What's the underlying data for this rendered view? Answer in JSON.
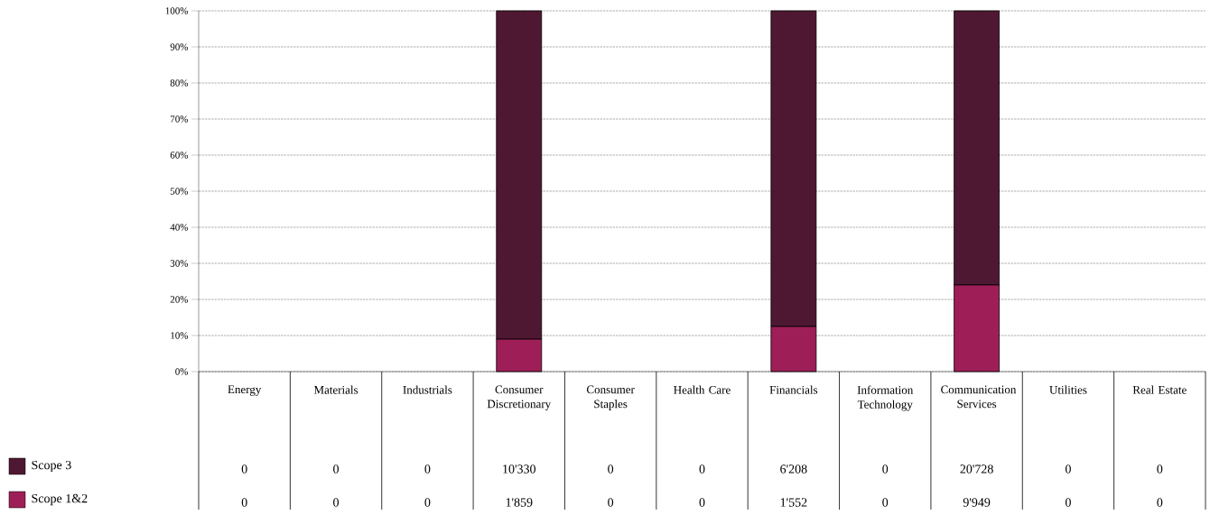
{
  "chart_data": {
    "type": "bar",
    "stacked": true,
    "grid": "y",
    "legend": "bottom left",
    "categories": [
      "Energy",
      "Materials",
      "Industrials",
      "Consumer Discretionary",
      "Consumer Staples",
      "Health Care",
      "Financials",
      "Information Technology",
      "Communication Services",
      "Utilities",
      "Real Estate"
    ],
    "series": [
      {
        "name": "Scope 1&2",
        "color": "#9e1f57",
        "values": [
          0,
          0,
          0,
          9,
          0,
          0,
          12.5,
          0,
          24,
          0,
          0
        ]
      },
      {
        "name": "Scope 3",
        "color": "#4f1832",
        "values": [
          0,
          0,
          0,
          91,
          0,
          0,
          87.5,
          0,
          76,
          0,
          0
        ]
      }
    ],
    "annotations": [
      "0",
      "0",
      "0",
      "10'330",
      "0",
      "0",
      "6'208",
      "0",
      "20'728",
      "0",
      "0",
      "0",
      "0",
      "0",
      "1'859",
      "0",
      "0",
      "1'552",
      "0",
      "9'949",
      "0",
      "0"
    ],
    "ylim": [
      0,
      100
    ],
    "yticks": [
      {
        "value": 0,
        "label": "0%"
      },
      {
        "value": 10,
        "label": "10%"
      },
      {
        "value": 20,
        "label": "20%"
      },
      {
        "value": 30,
        "label": "30%"
      },
      {
        "value": 40,
        "label": "40%"
      },
      {
        "value": 50,
        "label": "50%"
      },
      {
        "value": 60,
        "label": "60%"
      },
      {
        "value": 70,
        "label": "70%"
      },
      {
        "value": 80,
        "label": "80%"
      },
      {
        "value": 90,
        "label": "90%"
      },
      {
        "value": 100,
        "label": "100%"
      }
    ]
  }
}
